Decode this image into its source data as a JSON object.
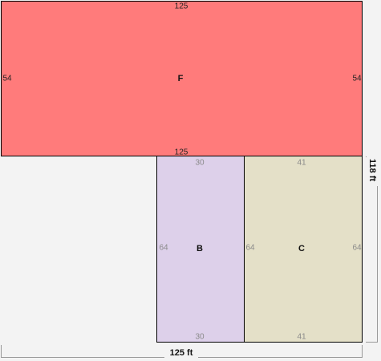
{
  "rooms": [
    {
      "label": "F",
      "top": "125",
      "bottom": "125",
      "left": "54",
      "right": "54"
    },
    {
      "label": "B",
      "top": "30",
      "bottom": "30",
      "left": "64"
    },
    {
      "label": "C",
      "top": "41",
      "bottom": "41",
      "left": "64",
      "right": "64"
    }
  ],
  "dimensions": {
    "width": "125 ft",
    "height": "118 ft"
  }
}
